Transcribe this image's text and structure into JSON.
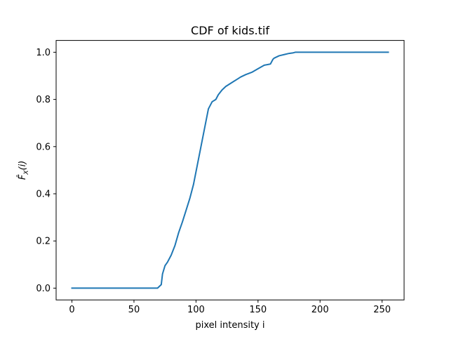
{
  "chart_data": {
    "type": "line",
    "title": "CDF of kids.tif",
    "xlabel": "pixel intensity i",
    "ylabel": "F̂_X(i)",
    "xlim": [
      -12.75,
      267.75
    ],
    "ylim": [
      -0.05,
      1.05
    ],
    "x_ticks": [
      0,
      50,
      100,
      150,
      200,
      250
    ],
    "x_tick_labels": [
      "0",
      "50",
      "100",
      "150",
      "200",
      "250"
    ],
    "y_ticks": [
      0.0,
      0.2,
      0.4,
      0.6,
      0.8,
      1.0
    ],
    "y_tick_labels": [
      "0.0",
      "0.2",
      "0.4",
      "0.6",
      "0.8",
      "1.0"
    ],
    "grid": false,
    "legend": "none",
    "series": [
      {
        "color": "#1f77b4",
        "x": [
          0,
          69,
          72,
          73,
          75,
          77,
          80,
          83,
          86,
          89,
          92,
          95,
          98,
          101,
          104,
          107,
          110,
          113,
          116,
          118,
          121,
          124,
          127,
          130,
          133,
          136,
          140,
          145,
          150,
          155,
          160,
          162,
          163,
          167,
          171,
          175,
          178,
          180,
          200,
          230,
          255
        ],
        "y": [
          0.0,
          0.0,
          0.015,
          0.06,
          0.095,
          0.11,
          0.14,
          0.18,
          0.235,
          0.28,
          0.33,
          0.38,
          0.44,
          0.52,
          0.6,
          0.68,
          0.76,
          0.79,
          0.8,
          0.82,
          0.84,
          0.855,
          0.865,
          0.875,
          0.885,
          0.895,
          0.905,
          0.915,
          0.93,
          0.945,
          0.95,
          0.97,
          0.975,
          0.985,
          0.99,
          0.995,
          0.997,
          1.0,
          1.0,
          1.0,
          1.0
        ]
      }
    ]
  }
}
